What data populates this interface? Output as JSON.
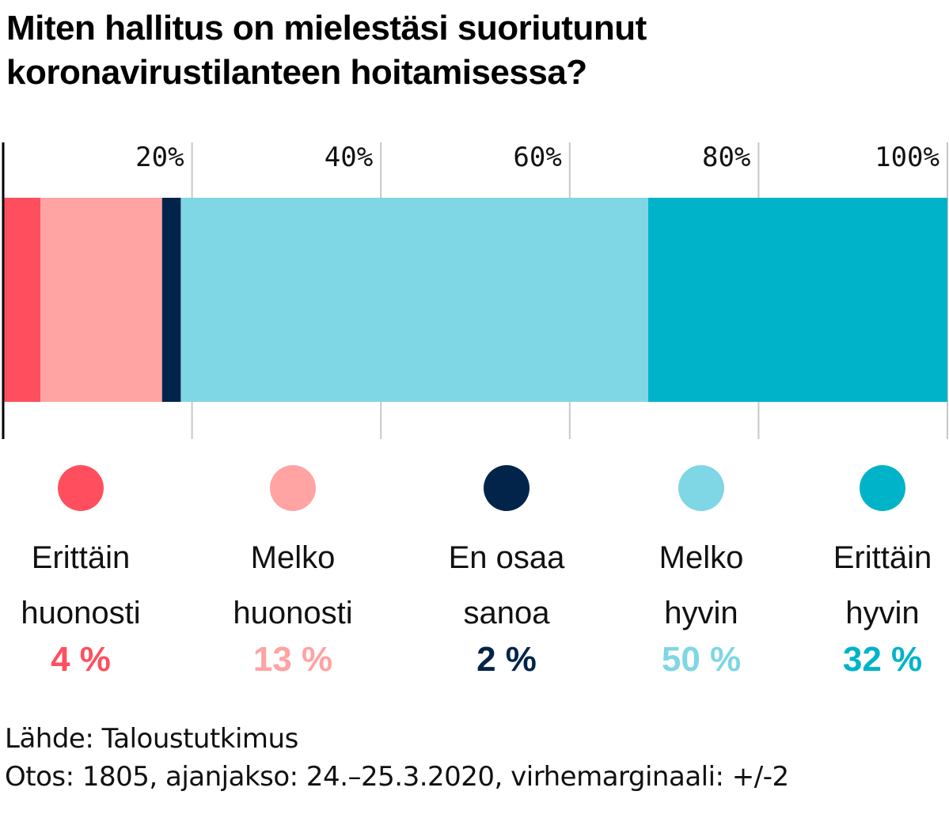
{
  "title": {
    "line1": "Miten hallitus on mielestäsi suoriutunut",
    "line2": "koronavirustilanteen hoitamisessa?"
  },
  "chart_data": {
    "type": "bar",
    "orientation": "horizontal-stacked",
    "title": "Miten hallitus on mielestäsi suoriutunut koronavirustilanteen hoitamisessa?",
    "xlim": [
      0,
      100
    ],
    "ticks": [
      20,
      40,
      60,
      80,
      100
    ],
    "tick_labels": [
      "20%",
      "40%",
      "60%",
      "80%",
      "100%"
    ],
    "grid": true,
    "series": [
      {
        "name": "Erittäin huonosti",
        "line1": "Erittäin",
        "line2": "huonosti",
        "value": 4,
        "label": "4 %",
        "color": "#ff4f5e"
      },
      {
        "name": "Melko huonosti",
        "line1": "Melko",
        "line2": "huonosti",
        "value": 13,
        "label": "13 %",
        "color": "#ffa3a3"
      },
      {
        "name": "En osaa sanoa",
        "line1": "En osaa",
        "line2": "sanoa",
        "value": 2,
        "label": "2 %",
        "color": "#03244a"
      },
      {
        "name": "Melko hyvin",
        "line1": "Melko",
        "line2": "hyvin",
        "value": 50,
        "label": "50 %",
        "color": "#7fd6e5"
      },
      {
        "name": "Erittäin hyvin",
        "line1": "Erittäin",
        "line2": "hyvin",
        "value": 32,
        "label": "32 %",
        "color": "#00b3c8"
      }
    ]
  },
  "footer": {
    "source": "Lähde: Taloustutkimus",
    "sample": "Otos: 1805, ajanjakso: 24.–25.3.2020, virhemarginaali: +/-2"
  }
}
